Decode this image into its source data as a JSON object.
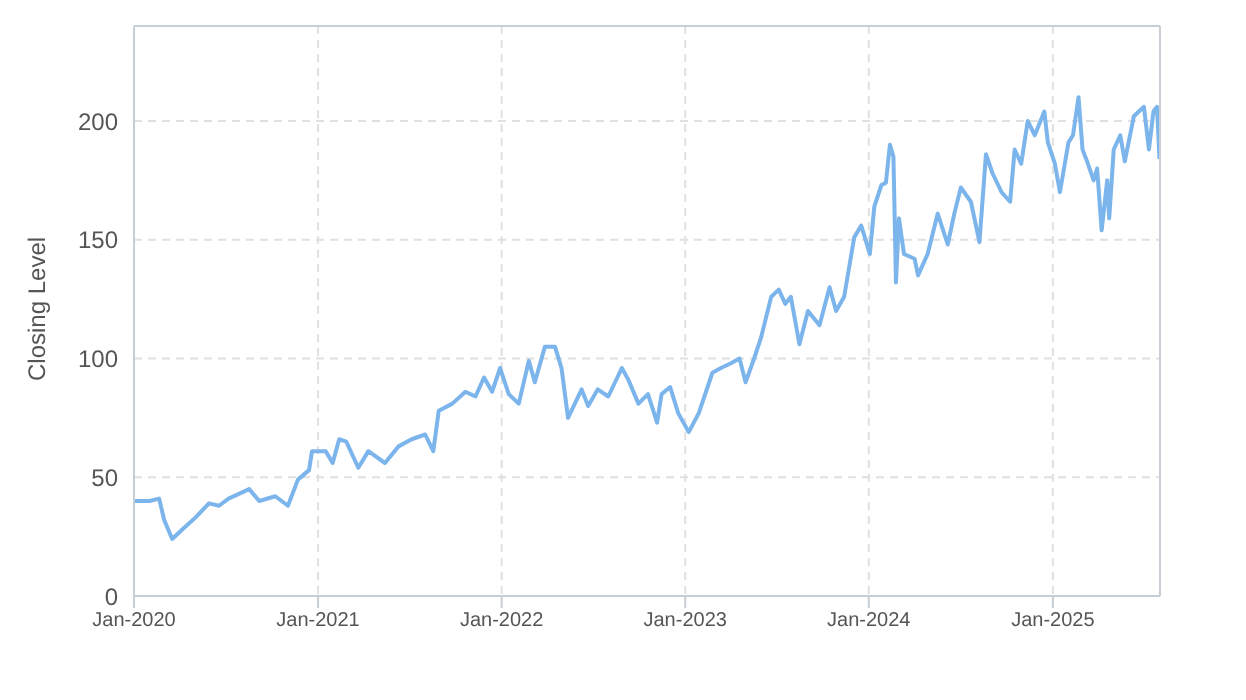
{
  "chart_data": {
    "type": "line",
    "ylabel": "Closing Level",
    "grid": true,
    "marker": "none",
    "line_style": "solid",
    "xlim": [
      "2020-01-01",
      "2025-08-02"
    ],
    "xticks": [
      {
        "value": "2020-01-01",
        "label": "Jan-2020"
      },
      {
        "value": "2021-01-01",
        "label": "Jan-2021"
      },
      {
        "value": "2022-01-01",
        "label": "Jan-2022"
      },
      {
        "value": "2023-01-01",
        "label": "Jan-2023"
      },
      {
        "value": "2024-01-01",
        "label": "Jan-2024"
      },
      {
        "value": "2025-01-01",
        "label": "Jan-2025"
      }
    ],
    "ylim": [
      0,
      240
    ],
    "yticks": [
      0,
      50,
      100,
      150,
      200
    ],
    "x": [
      "2020-01-01",
      "2020-02-01",
      "2020-02-20",
      "2020-03-01",
      "2020-03-17",
      "2020-04-06",
      "2020-05-02",
      "2020-05-29",
      "2020-06-18",
      "2020-07-07",
      "2020-08-17",
      "2020-09-06",
      "2020-10-08",
      "2020-11-02",
      "2020-11-22",
      "2020-12-14",
      "2020-12-20",
      "2021-01-16",
      "2021-01-30",
      "2021-02-12",
      "2021-02-26",
      "2021-03-22",
      "2021-04-11",
      "2021-05-14",
      "2021-06-10",
      "2021-07-06",
      "2021-08-02",
      "2021-08-18",
      "2021-08-29",
      "2021-09-25",
      "2021-10-21",
      "2021-11-10",
      "2021-11-27",
      "2021-12-13",
      "2021-12-29",
      "2022-01-15",
      "2022-02-04",
      "2022-02-24",
      "2022-03-08",
      "2022-03-28",
      "2022-04-17",
      "2022-04-30",
      "2022-05-13",
      "2022-06-09",
      "2022-06-22",
      "2022-07-11",
      "2022-08-01",
      "2022-08-28",
      "2022-09-10",
      "2022-09-30",
      "2022-10-19",
      "2022-11-06",
      "2022-11-15",
      "2022-12-02",
      "2022-12-18",
      "2023-01-08",
      "2023-01-28",
      "2023-02-24",
      "2023-03-13",
      "2023-04-02",
      "2023-04-19",
      "2023-05-01",
      "2023-05-18",
      "2023-06-01",
      "2023-06-21",
      "2023-07-06",
      "2023-07-19",
      "2023-07-30",
      "2023-08-16",
      "2023-09-02",
      "2023-09-25",
      "2023-10-15",
      "2023-10-28",
      "2023-11-13",
      "2023-12-03",
      "2023-12-17",
      "2024-01-03",
      "2024-01-12",
      "2024-01-26",
      "2024-02-04",
      "2024-02-12",
      "2024-02-19",
      "2024-02-24",
      "2024-03-01",
      "2024-03-11",
      "2024-04-01",
      "2024-04-08",
      "2024-04-27",
      "2024-05-17",
      "2024-06-06",
      "2024-06-19",
      "2024-07-02",
      "2024-07-22",
      "2024-08-08",
      "2024-08-21",
      "2024-09-03",
      "2024-09-21",
      "2024-10-08",
      "2024-10-17",
      "2024-10-30",
      "2024-11-12",
      "2024-11-26",
      "2024-12-15",
      "2024-12-22",
      "2025-01-05",
      "2025-01-15",
      "2025-02-01",
      "2025-02-10",
      "2025-02-21",
      "2025-03-01",
      "2025-03-10",
      "2025-03-23",
      "2025-03-30",
      "2025-04-08",
      "2025-04-19",
      "2025-04-23",
      "2025-05-02",
      "2025-05-15",
      "2025-05-24",
      "2025-06-11",
      "2025-07-01",
      "2025-07-11",
      "2025-07-20",
      "2025-07-27",
      "2025-08-01"
    ],
    "series": [
      {
        "color": "#7cb5ec",
        "values": [
          40,
          40,
          41,
          32,
          24,
          28,
          33,
          39,
          38,
          41,
          45,
          40,
          42,
          38,
          49,
          53,
          61,
          61,
          56,
          66,
          65,
          54,
          61,
          56,
          63,
          66,
          68,
          61,
          78,
          81,
          86,
          84,
          92,
          86,
          96,
          85,
          81,
          99,
          90,
          105,
          105,
          96,
          75,
          87,
          80,
          87,
          84,
          96,
          91,
          81,
          85,
          73,
          85,
          88,
          77,
          69,
          77,
          94,
          96,
          98,
          100,
          90,
          100,
          109,
          126,
          129,
          123,
          126,
          106,
          120,
          114,
          130,
          120,
          126,
          151,
          156,
          144,
          164,
          173,
          174,
          190,
          185,
          132,
          159,
          144,
          142,
          135,
          144,
          161,
          148,
          161,
          172,
          166,
          149,
          186,
          178,
          170,
          166,
          188,
          182,
          200,
          194,
          204,
          191,
          182,
          170,
          191,
          194,
          210,
          188,
          183,
          175,
          180,
          154,
          175,
          159,
          188,
          194,
          183,
          202,
          206,
          188,
          204,
          206,
          184
        ]
      }
    ]
  }
}
